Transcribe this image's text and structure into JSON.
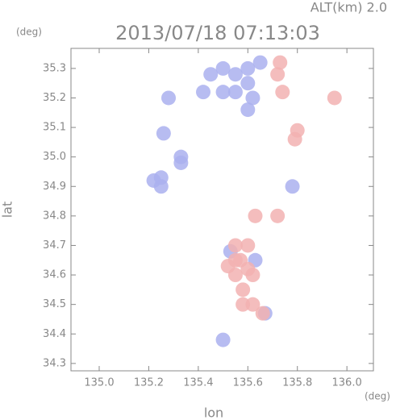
{
  "chart_data": {
    "type": "scatter",
    "title": "2013/07/18 07:13:03",
    "subtitle": "ALT(km) 2.0",
    "x_label": "lon",
    "y_label": "lat",
    "x_unit": "(deg)",
    "y_unit": "(deg)",
    "xlim": [
      134.886,
      136.107
    ],
    "ylim": [
      34.275,
      35.368
    ],
    "xticks": [
      {
        "value": 135.0,
        "label": "135.0"
      },
      135.2,
      135.4,
      135.6,
      135.8,
      {
        "value": 136.0,
        "label": "136.0"
      }
    ],
    "yticks": [
      34.3,
      34.4,
      34.5,
      34.6,
      34.7,
      34.8,
      34.9,
      {
        "value": 35.0,
        "label": "35.0"
      },
      35.1,
      35.2,
      35.3
    ],
    "series": [
      {
        "color": "#aab0ee",
        "x": [
          135.5,
          135.55,
          135.6,
          135.65,
          135.6,
          135.5,
          135.55,
          135.62,
          135.6,
          135.45,
          135.42,
          135.33,
          135.33,
          135.22,
          135.25,
          135.25,
          135.26,
          135.28,
          135.5,
          135.53,
          135.63,
          135.67,
          135.78
        ],
        "values": [
          35.3,
          35.28,
          35.3,
          35.32,
          35.25,
          35.22,
          35.22,
          35.2,
          35.16,
          35.28,
          35.22,
          35.0,
          34.98,
          34.92,
          34.9,
          34.93,
          35.08,
          35.2,
          34.38,
          34.68,
          34.65,
          34.47,
          34.9
        ]
      },
      {
        "color": "#f2b2b2",
        "x": [
          135.72,
          135.74,
          135.73,
          135.95,
          135.8,
          135.79,
          135.57,
          135.6,
          135.55,
          135.52,
          135.58,
          135.62,
          135.6,
          135.55,
          135.58,
          135.62,
          135.66,
          135.63,
          135.72,
          135.55
        ],
        "values": [
          35.28,
          35.22,
          35.32,
          35.2,
          35.09,
          35.06,
          34.65,
          34.62,
          34.6,
          34.63,
          34.55,
          34.6,
          34.7,
          34.7,
          34.5,
          34.5,
          34.47,
          34.8,
          34.8,
          34.65
        ]
      }
    ]
  }
}
